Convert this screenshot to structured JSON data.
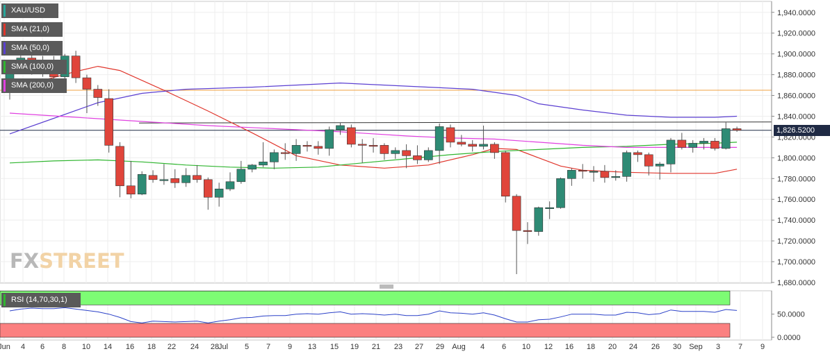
{
  "chart_data": {
    "type": "candlestick",
    "symbol": "XAU/USD",
    "current_price_label": "1,826.5200",
    "y_axis": {
      "ylim": [
        1680,
        1950
      ],
      "ticks": [
        "1,940.0000",
        "1,920.0000",
        "1,900.0000",
        "1,880.0000",
        "1,860.0000",
        "1,840.0000",
        "1,820.0000",
        "1,800.0000",
        "1,780.0000",
        "1,760.0000",
        "1,740.0000",
        "1,720.0000",
        "1,700.0000",
        "1,680.0000"
      ],
      "tick_values": [
        1940,
        1920,
        1900,
        1880,
        1860,
        1840,
        1820,
        1800,
        1780,
        1760,
        1740,
        1720,
        1700,
        1680
      ]
    },
    "x_axis": {
      "tick_labels": [
        "Jun",
        "4",
        "6",
        "8",
        "10",
        "14",
        "16",
        "18",
        "22",
        "24",
        "28",
        "Jul",
        "5",
        "7",
        "9",
        "13",
        "15",
        "19",
        "21",
        "23",
        "27",
        "29",
        "Aug",
        "4",
        "6",
        "10",
        "12",
        "16",
        "18",
        "20",
        "24",
        "26",
        "30",
        "Sep",
        "3",
        "7",
        "9"
      ]
    },
    "legend": [
      "XAU/USD",
      "SMA (21,0)",
      "SMA (50,0)",
      "SMA (100,0)",
      "SMA (200,0)"
    ],
    "legend_colors": [
      "#26a69a",
      "#e0352b",
      "#5b3fd1",
      "#2fb52f",
      "#e040e0"
    ],
    "candles": [
      {
        "o": 1875,
        "h": 1890,
        "l": 1856,
        "c": 1888
      },
      {
        "o": 1888,
        "h": 1902,
        "l": 1882,
        "c": 1896
      },
      {
        "o": 1896,
        "h": 1900,
        "l": 1880,
        "c": 1885
      },
      {
        "o": 1885,
        "h": 1898,
        "l": 1878,
        "c": 1893
      },
      {
        "o": 1893,
        "h": 1898,
        "l": 1871,
        "c": 1878
      },
      {
        "o": 1878,
        "h": 1900,
        "l": 1870,
        "c": 1898
      },
      {
        "o": 1898,
        "h": 1903,
        "l": 1872,
        "c": 1877
      },
      {
        "o": 1877,
        "h": 1880,
        "l": 1843,
        "c": 1866
      },
      {
        "o": 1866,
        "h": 1870,
        "l": 1850,
        "c": 1858
      },
      {
        "o": 1857,
        "h": 1866,
        "l": 1805,
        "c": 1812
      },
      {
        "o": 1811,
        "h": 1815,
        "l": 1762,
        "c": 1773
      },
      {
        "o": 1773,
        "h": 1797,
        "l": 1761,
        "c": 1765
      },
      {
        "o": 1765,
        "h": 1787,
        "l": 1764,
        "c": 1784
      },
      {
        "o": 1783,
        "h": 1788,
        "l": 1776,
        "c": 1779
      },
      {
        "o": 1779,
        "h": 1794,
        "l": 1774,
        "c": 1779
      },
      {
        "o": 1780,
        "h": 1789,
        "l": 1771,
        "c": 1776
      },
      {
        "o": 1776,
        "h": 1790,
        "l": 1772,
        "c": 1783
      },
      {
        "o": 1783,
        "h": 1793,
        "l": 1776,
        "c": 1779
      },
      {
        "o": 1779,
        "h": 1781,
        "l": 1750,
        "c": 1762
      },
      {
        "o": 1762,
        "h": 1776,
        "l": 1753,
        "c": 1770
      },
      {
        "o": 1770,
        "h": 1786,
        "l": 1768,
        "c": 1777
      },
      {
        "o": 1777,
        "h": 1797,
        "l": 1775,
        "c": 1789
      },
      {
        "o": 1789,
        "h": 1794,
        "l": 1786,
        "c": 1793
      },
      {
        "o": 1793,
        "h": 1815,
        "l": 1791,
        "c": 1796
      },
      {
        "o": 1796,
        "h": 1808,
        "l": 1789,
        "c": 1805
      },
      {
        "o": 1805,
        "h": 1814,
        "l": 1798,
        "c": 1804
      },
      {
        "o": 1804,
        "h": 1818,
        "l": 1797,
        "c": 1812
      },
      {
        "o": 1812,
        "h": 1816,
        "l": 1806,
        "c": 1811
      },
      {
        "o": 1811,
        "h": 1816,
        "l": 1803,
        "c": 1809
      },
      {
        "o": 1809,
        "h": 1830,
        "l": 1802,
        "c": 1827
      },
      {
        "o": 1827,
        "h": 1834,
        "l": 1822,
        "c": 1831
      },
      {
        "o": 1829,
        "h": 1832,
        "l": 1810,
        "c": 1813
      },
      {
        "o": 1813,
        "h": 1818,
        "l": 1795,
        "c": 1812
      },
      {
        "o": 1812,
        "h": 1819,
        "l": 1805,
        "c": 1811
      },
      {
        "o": 1812,
        "h": 1814,
        "l": 1798,
        "c": 1804
      },
      {
        "o": 1804,
        "h": 1810,
        "l": 1799,
        "c": 1807
      },
      {
        "o": 1807,
        "h": 1813,
        "l": 1790,
        "c": 1802
      },
      {
        "o": 1802,
        "h": 1812,
        "l": 1794,
        "c": 1798
      },
      {
        "o": 1798,
        "h": 1810,
        "l": 1796,
        "c": 1807
      },
      {
        "o": 1807,
        "h": 1833,
        "l": 1794,
        "c": 1830
      },
      {
        "o": 1829,
        "h": 1832,
        "l": 1810,
        "c": 1815
      },
      {
        "o": 1815,
        "h": 1822,
        "l": 1811,
        "c": 1813
      },
      {
        "o": 1813,
        "h": 1817,
        "l": 1806,
        "c": 1811
      },
      {
        "o": 1811,
        "h": 1831,
        "l": 1808,
        "c": 1813
      },
      {
        "o": 1813,
        "h": 1815,
        "l": 1799,
        "c": 1805
      },
      {
        "o": 1805,
        "h": 1807,
        "l": 1757,
        "c": 1763
      },
      {
        "o": 1763,
        "h": 1765,
        "l": 1688,
        "c": 1730
      },
      {
        "o": 1730,
        "h": 1738,
        "l": 1717,
        "c": 1729
      },
      {
        "o": 1729,
        "h": 1753,
        "l": 1725,
        "c": 1752
      },
      {
        "o": 1752,
        "h": 1758,
        "l": 1741,
        "c": 1752
      },
      {
        "o": 1752,
        "h": 1781,
        "l": 1751,
        "c": 1780
      },
      {
        "o": 1780,
        "h": 1790,
        "l": 1773,
        "c": 1788
      },
      {
        "o": 1788,
        "h": 1794,
        "l": 1780,
        "c": 1787
      },
      {
        "o": 1787,
        "h": 1792,
        "l": 1777,
        "c": 1787
      },
      {
        "o": 1787,
        "h": 1793,
        "l": 1776,
        "c": 1781
      },
      {
        "o": 1781,
        "h": 1788,
        "l": 1778,
        "c": 1782
      },
      {
        "o": 1782,
        "h": 1807,
        "l": 1777,
        "c": 1805
      },
      {
        "o": 1805,
        "h": 1807,
        "l": 1796,
        "c": 1803
      },
      {
        "o": 1803,
        "h": 1805,
        "l": 1783,
        "c": 1792
      },
      {
        "o": 1792,
        "h": 1796,
        "l": 1779,
        "c": 1794
      },
      {
        "o": 1794,
        "h": 1819,
        "l": 1786,
        "c": 1817
      },
      {
        "o": 1817,
        "h": 1824,
        "l": 1808,
        "c": 1810
      },
      {
        "o": 1810,
        "h": 1817,
        "l": 1805,
        "c": 1814
      },
      {
        "o": 1814,
        "h": 1819,
        "l": 1808,
        "c": 1816
      },
      {
        "o": 1816,
        "h": 1819,
        "l": 1807,
        "c": 1809
      },
      {
        "o": 1809,
        "h": 1834,
        "l": 1808,
        "c": 1828
      },
      {
        "o": 1828,
        "h": 1830,
        "l": 1825,
        "c": 1826.5
      }
    ],
    "series": [
      {
        "name": "SMA (21,0)",
        "color": "#e0352b",
        "values": [
          [
            0,
            1866
          ],
          [
            6,
            1883
          ],
          [
            8,
            1888
          ],
          [
            10,
            1884
          ],
          [
            14,
            1865
          ],
          [
            18,
            1845
          ],
          [
            22,
            1824
          ],
          [
            26,
            1802
          ],
          [
            30,
            1793
          ],
          [
            34,
            1790
          ],
          [
            38,
            1793
          ],
          [
            42,
            1803
          ],
          [
            44,
            1809
          ],
          [
            46,
            1808
          ],
          [
            48,
            1800
          ],
          [
            50,
            1792
          ],
          [
            52,
            1788
          ],
          [
            56,
            1786
          ],
          [
            60,
            1785
          ],
          [
            64,
            1785
          ],
          [
            66,
            1789
          ]
        ]
      },
      {
        "name": "SMA (50,0)",
        "color": "#5b3fd1",
        "values": [
          [
            0,
            1823
          ],
          [
            4,
            1838
          ],
          [
            8,
            1853
          ],
          [
            12,
            1862
          ],
          [
            16,
            1866
          ],
          [
            22,
            1868
          ],
          [
            26,
            1870
          ],
          [
            30,
            1872
          ],
          [
            34,
            1870
          ],
          [
            38,
            1868
          ],
          [
            42,
            1866
          ],
          [
            46,
            1860
          ],
          [
            48,
            1852
          ],
          [
            52,
            1846
          ],
          [
            56,
            1841
          ],
          [
            60,
            1839
          ],
          [
            64,
            1839
          ],
          [
            66,
            1840
          ]
        ]
      },
      {
        "name": "SMA (100,0)",
        "color": "#2fb52f",
        "values": [
          [
            0,
            1795
          ],
          [
            4,
            1797
          ],
          [
            8,
            1798
          ],
          [
            12,
            1796
          ],
          [
            16,
            1793
          ],
          [
            20,
            1791
          ],
          [
            24,
            1790
          ],
          [
            28,
            1791
          ],
          [
            32,
            1795
          ],
          [
            36,
            1799
          ],
          [
            40,
            1803
          ],
          [
            44,
            1806
          ],
          [
            48,
            1808
          ],
          [
            52,
            1810
          ],
          [
            56,
            1811
          ],
          [
            60,
            1813
          ],
          [
            64,
            1814
          ],
          [
            66,
            1815
          ]
        ]
      },
      {
        "name": "SMA (200,0)",
        "color": "#e040e0",
        "values": [
          [
            0,
            1843
          ],
          [
            6,
            1839
          ],
          [
            12,
            1835
          ],
          [
            18,
            1831
          ],
          [
            24,
            1828
          ],
          [
            30,
            1825
          ],
          [
            36,
            1821
          ],
          [
            40,
            1819
          ],
          [
            44,
            1818
          ],
          [
            48,
            1815
          ],
          [
            52,
            1812
          ],
          [
            56,
            1810
          ],
          [
            60,
            1810
          ],
          [
            64,
            1810
          ],
          [
            66,
            1810
          ]
        ]
      }
    ],
    "horizontal_lines": [
      {
        "name": "resistance-orange",
        "value": 1865,
        "color": "#f0a040"
      },
      {
        "name": "resistance-black",
        "value": 1834,
        "color": "#333333"
      }
    ],
    "rsi": {
      "label": "RSI (14,70,30,1)",
      "ylim": [
        0,
        100
      ],
      "ticks": [
        "50.0000",
        "0.0000"
      ],
      "tick_values": [
        50,
        0
      ],
      "values": [
        57,
        61,
        63,
        62,
        62,
        64,
        61,
        58,
        55,
        50,
        43,
        34,
        31,
        35,
        34,
        33,
        34,
        35,
        31,
        35,
        38,
        42,
        43,
        46,
        47,
        47,
        50,
        51,
        50,
        53,
        55,
        50,
        51,
        50,
        48,
        50,
        47,
        47,
        50,
        57,
        53,
        52,
        50,
        53,
        48,
        40,
        33,
        33,
        38,
        39,
        44,
        50,
        50,
        50,
        48,
        48,
        54,
        53,
        49,
        51,
        59,
        56,
        56,
        56,
        54,
        60,
        58
      ]
    }
  }
}
